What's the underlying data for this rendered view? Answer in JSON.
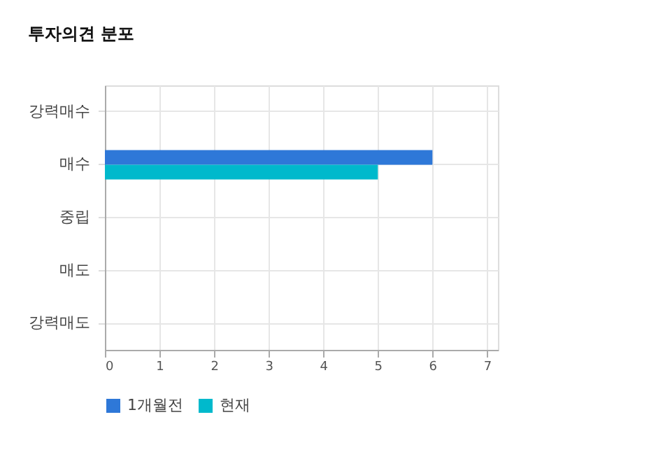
{
  "chart_data": {
    "type": "bar",
    "title": "투자의견 분포",
    "orientation": "horizontal",
    "categories": [
      "강력매수",
      "매수",
      "중립",
      "매도",
      "강력매도"
    ],
    "series": [
      {
        "name": "1개월전",
        "color": "#2e78d8",
        "values": [
          0,
          6,
          0,
          0,
          0
        ]
      },
      {
        "name": "현재",
        "color": "#00b9cc",
        "values": [
          0,
          5,
          0,
          0,
          0
        ]
      }
    ],
    "xlim": [
      0,
      7.2
    ],
    "xticks": [
      0,
      1,
      2,
      3,
      4,
      5,
      6,
      7
    ],
    "grid": true,
    "legend": "bottom"
  }
}
